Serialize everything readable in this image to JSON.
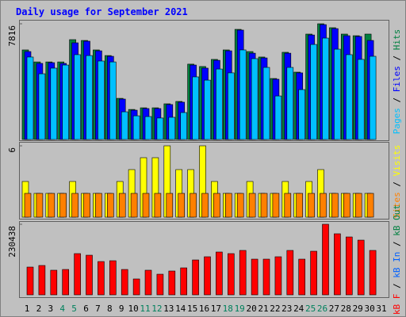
{
  "chart_data": [
    {
      "type": "bar",
      "title": "Daily usage for September 2021",
      "legend_separator": " / ",
      "ylim": [
        0,
        7816
      ],
      "yticks": [
        7816
      ],
      "series": [
        {
          "name": "Pages",
          "color": "#00c0ff",
          "values": [
            5570,
            4440,
            4820,
            5030,
            5730,
            5670,
            5300,
            5240,
            1870,
            1600,
            1550,
            1450,
            1500,
            1820,
            4230,
            4010,
            4760,
            4500,
            6050,
            5460,
            4870,
            2940,
            4870,
            3370,
            6420,
            6850,
            6100,
            5730,
            5410,
            5620,
            null
          ]
        },
        {
          "name": "Files",
          "color": "#0000ff",
          "values": [
            5940,
            5140,
            5190,
            5140,
            6530,
            6640,
            5990,
            5620,
            2730,
            1980,
            2090,
            2090,
            2360,
            2520,
            5030,
            4820,
            5350,
            5990,
            7390,
            5830,
            5510,
            4070,
            5830,
            4500,
            7060,
            7760,
            7490,
            7010,
            6960,
            6690,
            null
          ]
        },
        {
          "name": "Hits",
          "color": "#008040",
          "values": [
            6050,
            5240,
            5240,
            5240,
            6745,
            6690,
            6050,
            5670,
            2780,
            2030,
            2140,
            2140,
            2410,
            2570,
            5090,
            4930,
            5410,
            6050,
            7440,
            5940,
            5570,
            4120,
            5890,
            4550,
            7120,
            7816,
            7550,
            7120,
            7010,
            7120,
            null
          ]
        }
      ]
    },
    {
      "type": "bar",
      "legend_separator": " / ",
      "ylim": [
        0,
        6
      ],
      "yticks": [
        6
      ],
      "series": [
        {
          "name": "Sites",
          "color": "#ff8000",
          "values": [
            2,
            2,
            2,
            2,
            2,
            2,
            2,
            2,
            2,
            2,
            2,
            2,
            2,
            2,
            2,
            2,
            2,
            2,
            2,
            2,
            2,
            2,
            2,
            2,
            2,
            2,
            2,
            2,
            2,
            2,
            null
          ]
        },
        {
          "name": "Visits",
          "color": "#ffff00",
          "values": [
            3,
            2,
            2,
            2,
            3,
            2,
            2,
            2,
            3,
            4,
            5,
            5,
            6,
            4,
            4,
            6,
            3,
            2,
            2,
            3,
            2,
            2,
            3,
            2,
            3,
            4,
            2,
            2,
            2,
            2,
            null
          ]
        }
      ]
    },
    {
      "type": "bar",
      "legend_separator": " / ",
      "ylim": [
        0,
        230438
      ],
      "yticks": [
        230438
      ],
      "categories": [
        "1",
        "2",
        "3",
        "4",
        "5",
        "6",
        "7",
        "8",
        "9",
        "10",
        "11",
        "12",
        "13",
        "14",
        "15",
        "16",
        "17",
        "18",
        "19",
        "20",
        "21",
        "22",
        "23",
        "24",
        "25",
        "26",
        "27",
        "28",
        "29",
        "30",
        "31"
      ],
      "category_colors": [
        "#000000",
        "#000000",
        "#000000",
        "#00805c",
        "#00805c",
        "#000000",
        "#000000",
        "#000000",
        "#000000",
        "#000000",
        "#00805c",
        "#00805c",
        "#000000",
        "#000000",
        "#000000",
        "#000000",
        "#000000",
        "#00805c",
        "#00805c",
        "#000000",
        "#000000",
        "#000000",
        "#000000",
        "#000000",
        "#00805c",
        "#00805c",
        "#000000",
        "#000000",
        "#000000",
        "#000000",
        "#000000"
      ],
      "series": [
        {
          "name": "kB F",
          "color": "#ff0000",
          "values": [
            90600,
            95800,
            80300,
            82800,
            134600,
            129400,
            108700,
            111300,
            82800,
            51800,
            80300,
            67300,
            77700,
            88000,
            113900,
            124300,
            139800,
            134600,
            145000,
            116500,
            116500,
            124300,
            145000,
            116500,
            142400,
            230438,
            199400,
            189000,
            178600,
            145000,
            null
          ]
        },
        {
          "name": "kB In",
          "color": "#0060ff",
          "values": [
            null,
            null,
            null,
            null,
            null,
            null,
            null,
            null,
            null,
            null,
            null,
            null,
            null,
            null,
            null,
            null,
            null,
            null,
            null,
            null,
            null,
            null,
            null,
            null,
            null,
            null,
            null,
            null,
            null,
            null,
            null
          ]
        },
        {
          "name": "kB Out",
          "color": "#008040",
          "values": [
            null,
            null,
            null,
            null,
            null,
            null,
            null,
            null,
            null,
            null,
            null,
            null,
            null,
            null,
            null,
            null,
            null,
            null,
            null,
            null,
            null,
            null,
            null,
            null,
            null,
            null,
            null,
            null,
            null,
            null,
            null
          ]
        }
      ]
    }
  ]
}
